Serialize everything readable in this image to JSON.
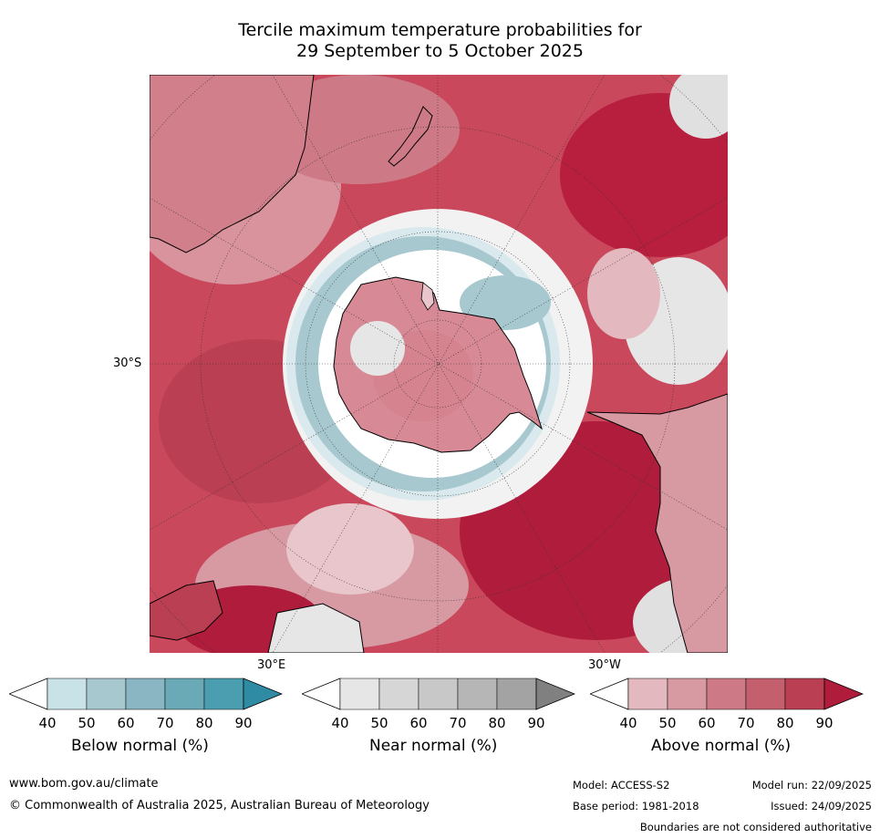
{
  "title": {
    "line1": "Tercile maximum temperature probabilities for",
    "line2": "29 September to 5 October 2025"
  },
  "map": {
    "projection": "south-polar-stereographic",
    "labels": {
      "lat_30s": "30°S",
      "lon_30e": "30°E",
      "lon_30w": "30°W"
    },
    "colors": {
      "below": [
        "#ffffff",
        "#c9e2e8",
        "#a8c8d0",
        "#8ab5c2",
        "#6aaab7",
        "#4a9eb0",
        "#2f8ba3"
      ],
      "near": [
        "#ffffff",
        "#e6e6e6",
        "#d6d6d6",
        "#c8c8c8",
        "#b6b6b6",
        "#a3a3a3",
        "#808080"
      ],
      "above": [
        "#ffffff",
        "#e3b8bf",
        "#d79aa3",
        "#cd7a86",
        "#c45f6d",
        "#ba3f52",
        "#b01c3b"
      ]
    }
  },
  "colorbars": [
    {
      "id": "below",
      "label": "Below normal (%)",
      "ticks": [
        "40",
        "50",
        "60",
        "70",
        "80",
        "90"
      ]
    },
    {
      "id": "near",
      "label": "Near normal (%)",
      "ticks": [
        "40",
        "50",
        "60",
        "70",
        "80",
        "90"
      ]
    },
    {
      "id": "above",
      "label": "Above normal (%)",
      "ticks": [
        "40",
        "50",
        "60",
        "70",
        "80",
        "90"
      ]
    }
  ],
  "footer": {
    "website": "www.bom.gov.au/climate",
    "copyright": "© Commonwealth of Australia 2025, Australian Bureau of Meteorology",
    "model": "Model: ACCESS-S2",
    "base_period": "Base period: 1981-2018",
    "model_run": "Model run: 22/09/2025",
    "issued": "Issued: 24/09/2025",
    "disclaimer": "Boundaries are not considered authoritative"
  }
}
